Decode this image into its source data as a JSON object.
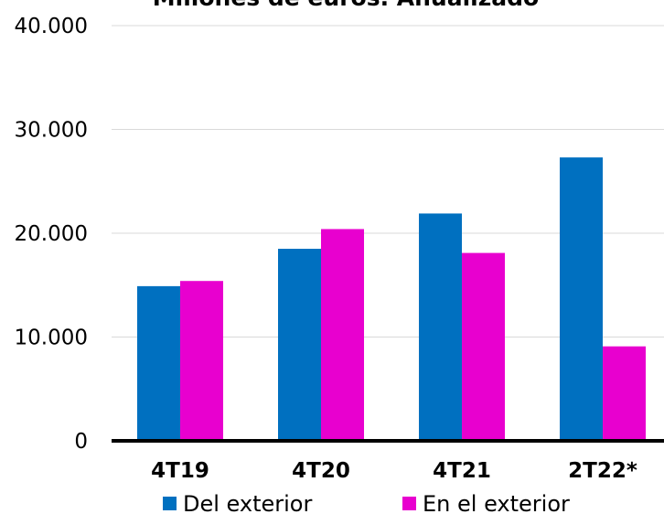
{
  "chart_data": {
    "type": "bar",
    "title": "Millones de euros. Anualizado",
    "xlabel": "",
    "ylabel": "",
    "categories": [
      "4T19",
      "4T20",
      "4T21",
      "2T22*"
    ],
    "series": [
      {
        "name": "Del exterior",
        "color": "#0070C0",
        "values": [
          14900,
          18500,
          21900,
          27300
        ]
      },
      {
        "name": "En el exterior",
        "color": "#E800CF",
        "values": [
          15400,
          20400,
          18100,
          9100
        ]
      }
    ],
    "ylim": [
      0,
      40000
    ],
    "yticks": [
      0,
      10000,
      20000,
      30000,
      40000
    ],
    "ytick_labels": [
      "0",
      "10.000",
      "20.000",
      "30.000",
      "40.000"
    ],
    "grid": true,
    "legend": "bottom"
  }
}
